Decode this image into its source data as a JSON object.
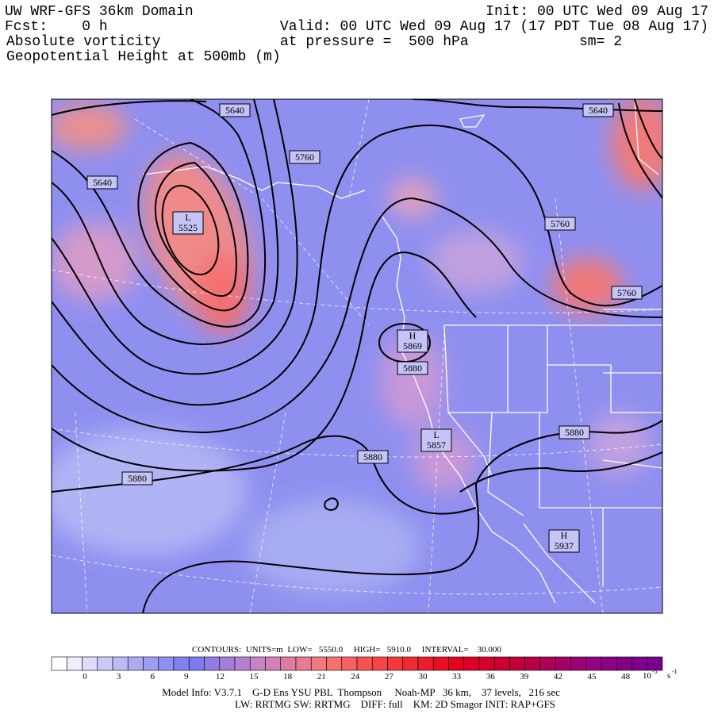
{
  "header": {
    "title": "UW WRF-GFS 36km Domain",
    "init": "Init: 00 UTC Wed 09 Aug 17",
    "fcst": "Fcst:    0 h",
    "valid": "Valid: 00 UTC Wed 09 Aug 17 (17 PDT Tue 08 Aug 17)",
    "field": "Absolute vorticity",
    "pressure": "at pressure =  500 hPa",
    "smoothing": "sm= 2",
    "contour_field": "Geopotential Height at 500mb (m)"
  },
  "map": {
    "labels": [
      {
        "value": "5640"
      },
      {
        "value": "5640"
      },
      {
        "value": "5640"
      },
      {
        "value": "5760"
      },
      {
        "value": "5760"
      },
      {
        "value": "5760"
      },
      {
        "symbol": "L",
        "value": "5525"
      },
      {
        "symbol": "H",
        "value": "5869"
      },
      {
        "value": "5880"
      },
      {
        "value": "5880"
      },
      {
        "value": "5880"
      },
      {
        "value": "5880"
      },
      {
        "symbol": "L",
        "value": "5857"
      },
      {
        "symbol": "H",
        "value": "5937"
      }
    ]
  },
  "footer": {
    "contours": "CONTOURS:  UNITS=m  LOW=   5550.0     HIGH=   5910.0     INTERVAL=    30.000",
    "colorbar_labels": [
      "0",
      "3",
      "6",
      "9",
      "12",
      "15",
      "18",
      "21",
      "24",
      "27",
      "30",
      "33",
      "36",
      "39",
      "42",
      "45",
      "48"
    ],
    "units_base": "10",
    "units_exp": "-5",
    "units_s": "s",
    "units_s_exp": "-1",
    "model_info": "Model Info: V3.7.1    G-D Ens YSU PBL  Thompson     Noah-MP   36 km,    37 levels,   216 sec",
    "model_info2": "LW: RRTMG SW: RRTMG    DIFF: full    KM: 2D Smagor INIT: RAP+GFS"
  }
}
